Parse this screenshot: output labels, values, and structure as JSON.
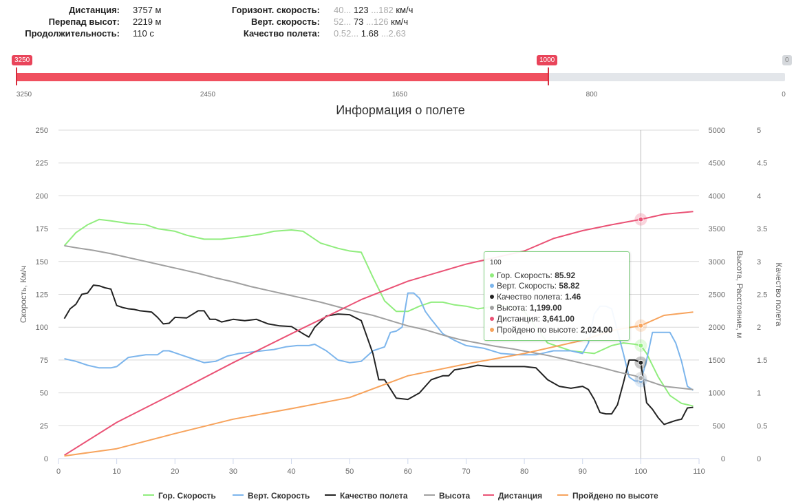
{
  "stats": {
    "left": [
      {
        "label": "Дистанция:",
        "value": "3757 м"
      },
      {
        "label": "Перепад высот:",
        "value": "2219 м"
      },
      {
        "label": "Продолжительность:",
        "value": "110 с"
      }
    ],
    "right": [
      {
        "label": "Горизонт. скорость:",
        "min": "40...",
        "avg": "123",
        "max": "...182",
        "unit": "км/ч"
      },
      {
        "label": "Верт. скорость:",
        "min": "52...",
        "avg": "73",
        "max": "...126",
        "unit": "км/ч"
      },
      {
        "label": "Качество полета:",
        "min": "0.52...",
        "avg": "1.68",
        "max": "...2.63",
        "unit": ""
      }
    ]
  },
  "slider": {
    "from_label": "3250",
    "to_label": "1000",
    "end_label": "0",
    "ticks": [
      "3250",
      "2450",
      "1650",
      "800",
      "0"
    ],
    "from_value": 3250,
    "to_value": 1000,
    "max": 3250,
    "min": 0
  },
  "tooltip": {
    "header": "100",
    "rows": [
      {
        "label": "Гор. Скорость: ",
        "value": "85.92",
        "color": "#90ed7d"
      },
      {
        "label": "Верт. Скорость: ",
        "value": "58.82",
        "color": "#7cb5ec"
      },
      {
        "label": "Качество полета: ",
        "value": "1.46",
        "color": "#222222"
      },
      {
        "label": "Высота: ",
        "value": "1,199.00",
        "color": "#a0a0a0"
      },
      {
        "label": "Дистанция: ",
        "value": "3,641.00",
        "color": "#ea5275"
      },
      {
        "label": "Пройдено по высоте: ",
        "value": "2,024.00",
        "color": "#f7a35c"
      }
    ]
  },
  "chart_data": {
    "type": "line",
    "title": "Информация о полете",
    "xlabel": "",
    "x_range": [
      0,
      110
    ],
    "x_ticks": [
      0,
      10,
      20,
      30,
      40,
      50,
      60,
      70,
      80,
      90,
      100,
      110
    ],
    "y_axes": [
      {
        "label": "Скорость, Км/ч",
        "range": [
          0,
          250
        ],
        "ticks": [
          0,
          25,
          50,
          75,
          100,
          125,
          150,
          175,
          200,
          225,
          250
        ]
      },
      {
        "label": "Высота, Расстояние, м",
        "range": [
          0,
          5000
        ],
        "ticks": [
          0,
          500,
          1000,
          1500,
          2000,
          2500,
          3000,
          3500,
          4000,
          4500,
          5000
        ]
      },
      {
        "label": "Качество полета",
        "range": [
          0,
          5
        ],
        "ticks": [
          0,
          0.5,
          1,
          1.5,
          2,
          2.5,
          3,
          3.5,
          4,
          4.5,
          5
        ]
      }
    ],
    "crosshair_x": 100,
    "grid": true,
    "legend_position": "bottom",
    "series": [
      {
        "name": "Гор. Скорость",
        "color": "#90ed7d",
        "axis": 0,
        "x": [
          1,
          3,
          5,
          7,
          9,
          12,
          15,
          17,
          20,
          22,
          25,
          28,
          30,
          32,
          35,
          37,
          40,
          42,
          45,
          48,
          50,
          52,
          54,
          56,
          58,
          60,
          62,
          64,
          66,
          68,
          70,
          72,
          75,
          78,
          80,
          84,
          88,
          92,
          95,
          97,
          99,
          100,
          101,
          103,
          105,
          107,
          109
        ],
        "y": [
          162,
          172,
          178,
          182,
          181,
          179,
          178,
          175,
          173,
          170,
          167,
          167,
          168,
          169,
          171,
          173,
          174,
          173,
          164,
          160,
          158,
          157,
          138,
          120,
          112,
          112,
          116,
          119,
          119,
          117,
          116,
          114,
          116,
          116,
          112,
          88,
          82,
          80,
          86,
          88,
          87,
          86,
          80,
          62,
          48,
          42,
          40
        ]
      },
      {
        "name": "Верт. Скорость",
        "color": "#7cb5ec",
        "axis": 0,
        "x": [
          1,
          3,
          5,
          7,
          9,
          10,
          12,
          15,
          17,
          18,
          19,
          21,
          23,
          25,
          27,
          29,
          31,
          33,
          35,
          37,
          39,
          41,
          43,
          44,
          46,
          48,
          50,
          52,
          54,
          56,
          57,
          58,
          59,
          60,
          61,
          62,
          63,
          64,
          66,
          68,
          70,
          73,
          76,
          79,
          82,
          85,
          88,
          90,
          91,
          92,
          93,
          94,
          95,
          97,
          98,
          99,
          100,
          101,
          102,
          103,
          104,
          105,
          106,
          107,
          108,
          109
        ],
        "y": [
          76,
          74,
          71,
          69,
          69,
          70,
          77,
          79,
          79,
          82,
          82,
          79,
          76,
          73,
          74,
          78,
          80,
          81,
          82,
          83,
          85,
          86,
          86,
          87,
          82,
          75,
          73,
          74,
          82,
          85,
          96,
          97,
          100,
          126,
          126,
          122,
          112,
          106,
          95,
          90,
          86,
          84,
          80,
          79,
          79,
          82,
          82,
          80,
          88,
          110,
          116,
          116,
          114,
          80,
          62,
          59,
          59,
          75,
          96,
          96,
          96,
          96,
          88,
          74,
          55,
          52
        ]
      },
      {
        "name": "Качество полета",
        "color": "#222222",
        "axis": 2,
        "x": [
          1,
          2,
          3,
          4,
          5,
          6,
          7,
          8,
          9,
          10,
          11,
          12,
          13,
          14,
          15,
          16,
          17,
          18,
          19,
          20,
          22,
          24,
          25,
          26,
          27,
          28,
          30,
          32,
          34,
          36,
          38,
          40,
          42,
          43,
          44,
          46,
          48,
          50,
          52,
          54,
          55,
          56,
          58,
          60,
          62,
          64,
          66,
          67,
          68,
          70,
          72,
          74,
          76,
          78,
          80,
          82,
          84,
          86,
          88,
          90,
          91,
          92,
          93,
          94,
          95,
          96,
          97,
          98,
          99,
          100,
          101,
          102,
          103,
          104,
          105,
          106,
          107,
          108,
          109
        ],
        "y": [
          2.13,
          2.28,
          2.35,
          2.5,
          2.52,
          2.64,
          2.63,
          2.6,
          2.58,
          2.33,
          2.3,
          2.28,
          2.27,
          2.25,
          2.24,
          2.23,
          2.15,
          2.05,
          2.06,
          2.15,
          2.14,
          2.25,
          2.25,
          2.12,
          2.12,
          2.08,
          2.12,
          2.1,
          2.12,
          2.05,
          2.02,
          2.01,
          1.9,
          1.85,
          2.0,
          2.17,
          2.2,
          2.19,
          2.1,
          1.6,
          1.2,
          1.2,
          0.92,
          0.9,
          1.0,
          1.2,
          1.26,
          1.26,
          1.35,
          1.38,
          1.42,
          1.4,
          1.4,
          1.4,
          1.4,
          1.38,
          1.2,
          1.1,
          1.07,
          1.1,
          1.05,
          0.9,
          0.7,
          0.68,
          0.68,
          0.82,
          1.15,
          1.5,
          1.5,
          1.46,
          0.85,
          0.75,
          0.62,
          0.52,
          0.55,
          0.58,
          0.6,
          0.77,
          0.78
        ]
      },
      {
        "name": "Высота",
        "color": "#a0a0a0",
        "axis": 1,
        "x": [
          1,
          3,
          6,
          9,
          12,
          15,
          18,
          21,
          24,
          27,
          30,
          33,
          36,
          39,
          42,
          45,
          48,
          51,
          54,
          57,
          60,
          63,
          66,
          69,
          72,
          75,
          78,
          81,
          84,
          87,
          90,
          93,
          96,
          99,
          101,
          104,
          107,
          109
        ],
        "y": [
          3240,
          3210,
          3170,
          3120,
          3060,
          3000,
          2940,
          2880,
          2820,
          2750,
          2690,
          2620,
          2560,
          2500,
          2440,
          2380,
          2310,
          2240,
          2180,
          2100,
          2020,
          1960,
          1880,
          1810,
          1760,
          1710,
          1670,
          1620,
          1570,
          1510,
          1450,
          1390,
          1320,
          1260,
          1190,
          1100,
          1070,
          1050
        ]
      },
      {
        "name": "Дистанция",
        "color": "#ea5275",
        "axis": 1,
        "x": [
          1,
          10,
          20,
          30,
          40,
          52,
          60,
          70,
          80,
          85,
          90,
          95,
          100,
          104,
          109
        ],
        "y": [
          50,
          550,
          1000,
          1460,
          1900,
          2420,
          2700,
          2960,
          3160,
          3350,
          3470,
          3560,
          3641,
          3720,
          3760
        ]
      },
      {
        "name": "Пройдено по высоте",
        "color": "#f7a35c",
        "axis": 1,
        "x": [
          1,
          10,
          20,
          30,
          40,
          50,
          60,
          70,
          80,
          86,
          90,
          95,
          100,
          104,
          109
        ],
        "y": [
          40,
          150,
          380,
          600,
          760,
          930,
          1260,
          1440,
          1600,
          1720,
          1800,
          1950,
          2024,
          2180,
          2230
        ]
      }
    ]
  }
}
